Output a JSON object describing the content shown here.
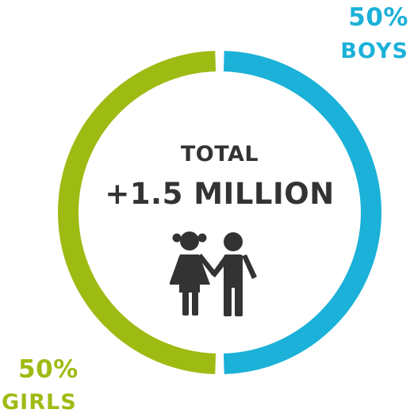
{
  "chart_data": {
    "type": "pie",
    "variant": "donut",
    "categories": [
      "BOYS",
      "GIRLS"
    ],
    "values": [
      50,
      50
    ],
    "value_labels": [
      "50%",
      "50%"
    ],
    "colors": [
      "#1bb1d8",
      "#9dbb13"
    ],
    "center": {
      "title": "TOTAL",
      "value": "+1.5 MILLION",
      "icon": "children-holding-hands-icon"
    }
  }
}
